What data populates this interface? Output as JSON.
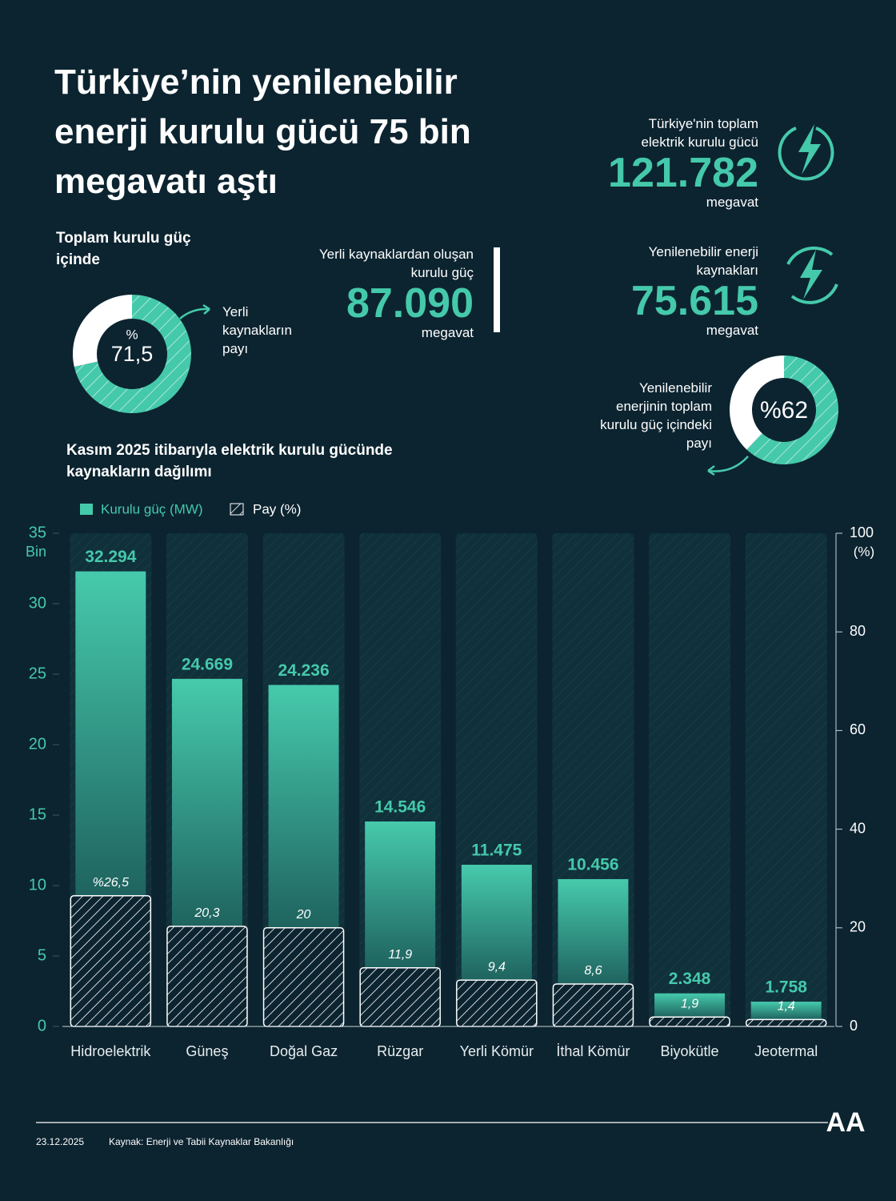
{
  "header": {
    "title": "Türkiye’nin yenilenebilir enerji kurulu gücü 75 bin megavatı aştı"
  },
  "stats": [
    {
      "label": "Türkiye'nin toplam elektrik kurulu gücü",
      "value": "121.782",
      "unit": "megavat"
    },
    {
      "label": "Yenilenebilir enerji kaynakları",
      "value": "75.615",
      "unit": "megavat"
    },
    {
      "label": "Yerli kaynaklardan oluşan kurulu güç",
      "value": "87.090",
      "unit": "megavat"
    }
  ],
  "chart_data": [
    {
      "type": "bar",
      "title": "Kasım 2025 itibarıyla elektrik kurulu gücünde kaynakların dağılımı",
      "categories": [
        "Hidroelektrik",
        "Güneş",
        "Doğal Gaz",
        "Rüzgar",
        "Yerli Kömür",
        "İthal Kömür",
        "Biyokütle",
        "Jeotermal"
      ],
      "series": [
        {
          "name": "Kurulu güç (MW)",
          "color": "#45c9ab",
          "values": [
            32.294,
            24.669,
            24.236,
            14.546,
            11.475,
            10.456,
            2.348,
            1.758
          ],
          "value_labels": [
            "32.294",
            "24.669",
            "24.236",
            "14.546",
            "11.475",
            "10.456",
            "2.348",
            "1.758"
          ]
        },
        {
          "name": "Pay (%)",
          "color": "#ffffff",
          "axis": "y2",
          "values": [
            26.5,
            20.3,
            20,
            11.9,
            9.4,
            8.6,
            1.9,
            1.4
          ],
          "value_labels": [
            "%26,5",
            "20,3",
            "20",
            "11,9",
            "9,4",
            "8,6",
            "1,9",
            "1,4"
          ]
        }
      ],
      "ylabel": "Bin",
      "y2label": "(%)",
      "ylim": [
        0,
        35
      ],
      "yticks": [
        0,
        5,
        10,
        15,
        20,
        25,
        30,
        35
      ],
      "y2lim": [
        0,
        100
      ],
      "y2ticks": [
        0,
        20,
        40,
        60,
        80,
        100
      ]
    },
    {
      "type": "donut",
      "title": "Toplam kurulu güç içinde",
      "symbol": "%",
      "values": [
        71.5
      ],
      "value_labels": [
        "71,5"
      ],
      "annotation": "Yerli kaynakların payı",
      "color": "#45c9ab"
    },
    {
      "type": "donut",
      "values": [
        62
      ],
      "value_labels": [
        "%62"
      ],
      "annotation": "Yenilenebilir enerjinin toplam kurulu güç içindeki payı",
      "color": "#45c9ab"
    }
  ],
  "footer": {
    "date": "23.12.2025",
    "source": "Kaynak: Enerji ve Tabii Kaynaklar Bakanlığı",
    "logo": "AA"
  }
}
